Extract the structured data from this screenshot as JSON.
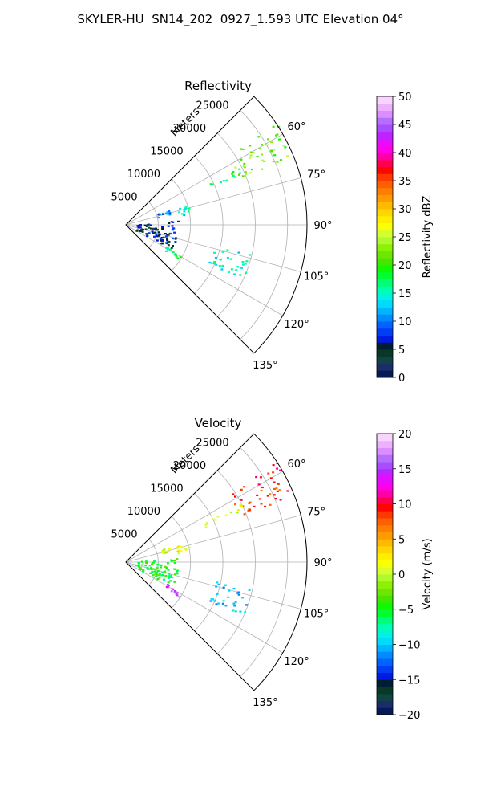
{
  "title": "SKYLER-HU  SN14_202  0927_1.593 UTC Elevation 04°",
  "chart_data": [
    {
      "type": "heatmap",
      "projection": "polar-sector",
      "title": "Reflectivity",
      "range_label": "Meters",
      "range_ticks": [
        "5000",
        "10000",
        "15000",
        "20000",
        "25000"
      ],
      "azimuth_ticks": [
        "60°",
        "75°",
        "90°",
        "105°",
        "120°",
        "135°"
      ],
      "azimuth_range_deg": [
        45,
        135
      ],
      "range_max_m": 28000,
      "grid": true,
      "colorbar": {
        "label": "Reflectivity dBZ",
        "min": 0,
        "max": 50,
        "ticks": [
          "0",
          "5",
          "10",
          "15",
          "20",
          "25",
          "30",
          "35",
          "40",
          "45",
          "50"
        ]
      },
      "echo_regions": [
        {
          "az": [
            56,
            68
          ],
          "range_m": [
            19000,
            28000
          ],
          "value": 22
        },
        {
          "az": [
            63,
            66
          ],
          "range_m": [
            13000,
            20000
          ],
          "value": 18
        },
        {
          "az": [
            72,
            80
          ],
          "range_m": [
            8000,
            10000
          ],
          "value": 14
        },
        {
          "az": [
            70,
            76
          ],
          "range_m": [
            5000,
            7000
          ],
          "value": 10
        },
        {
          "az": [
            118,
            123
          ],
          "range_m": [
            7000,
            10000
          ],
          "value": 17
        },
        {
          "az": [
            102,
            115
          ],
          "range_m": [
            14000,
            20000
          ],
          "value": 15
        },
        {
          "az": [
            85,
            118
          ],
          "range_m": [
            1500,
            8000
          ],
          "value": 6
        }
      ]
    },
    {
      "type": "heatmap",
      "projection": "polar-sector",
      "title": "Velocity",
      "range_label": "Meters",
      "range_ticks": [
        "5000",
        "10000",
        "15000",
        "20000",
        "25000"
      ],
      "azimuth_ticks": [
        "60°",
        "75°",
        "90°",
        "105°",
        "120°",
        "135°"
      ],
      "azimuth_range_deg": [
        45,
        135
      ],
      "range_max_m": 28000,
      "grid": true,
      "colorbar": {
        "label": "Velocity (m/s)",
        "min": -20,
        "max": 20,
        "ticks": [
          "−20",
          "−15",
          "−10",
          "−5",
          "0",
          "5",
          "10",
          "15",
          "20"
        ]
      },
      "echo_regions": [
        {
          "az": [
            56,
            68
          ],
          "range_m": [
            19000,
            28000
          ],
          "value": 9
        },
        {
          "az": [
            63,
            66
          ],
          "range_m": [
            13000,
            20000
          ],
          "value": 1
        },
        {
          "az": [
            72,
            80
          ],
          "range_m": [
            8000,
            10000
          ],
          "value": 2
        },
        {
          "az": [
            70,
            76
          ],
          "range_m": [
            5000,
            7000
          ],
          "value": 1
        },
        {
          "az": [
            118,
            123
          ],
          "range_m": [
            7000,
            10000
          ],
          "value": 15
        },
        {
          "az": [
            102,
            115
          ],
          "range_m": [
            14000,
            20000
          ],
          "value": -10
        },
        {
          "az": [
            85,
            118
          ],
          "range_m": [
            1500,
            8000
          ],
          "value": -5
        }
      ]
    }
  ]
}
